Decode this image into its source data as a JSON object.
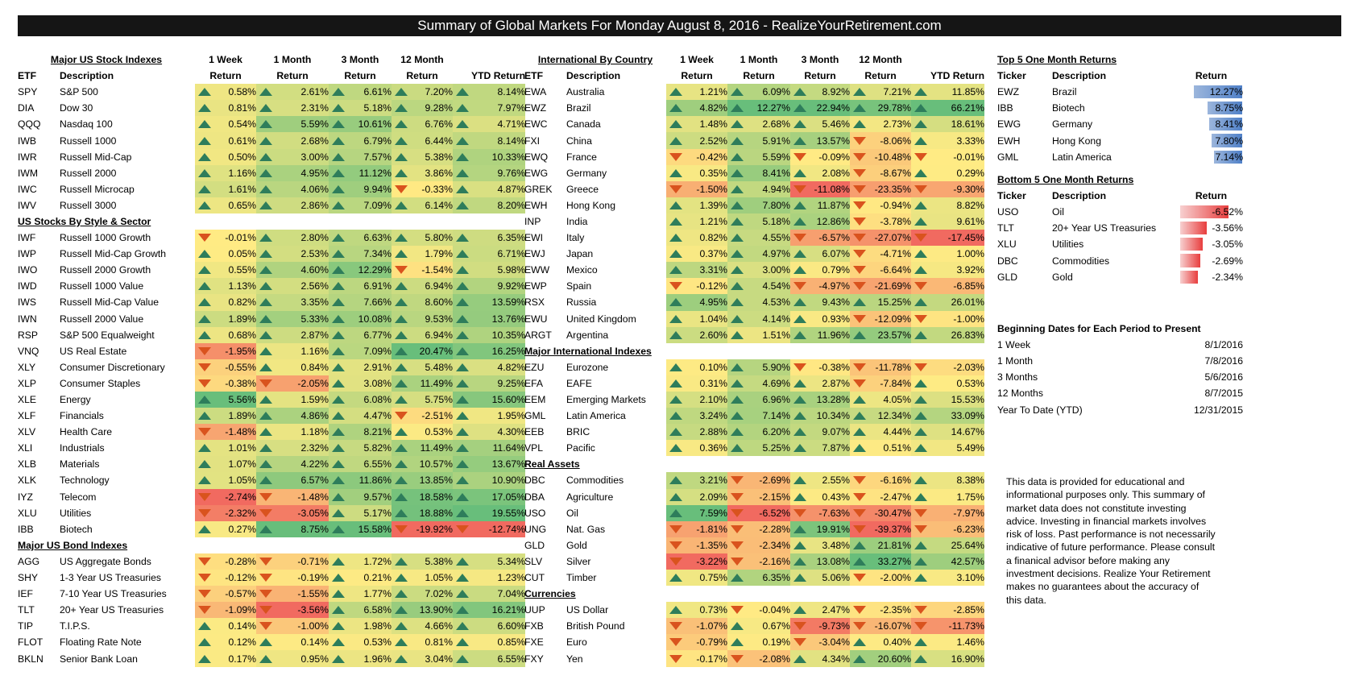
{
  "title": "Summary of Global Markets For Monday August 8, 2016 - RealizeYourRetirement.com",
  "colors": {
    "banner_bg": "#151515",
    "up_arrow": "#2e7d5b",
    "down_arrow": "#d9531e"
  },
  "column_headers": {
    "etf": "ETF",
    "description": "Description",
    "w1": [
      "1 Week",
      "Return"
    ],
    "m1": [
      "1 Month",
      "Return"
    ],
    "m3": [
      "3 Month",
      "Return"
    ],
    "m12": [
      "12 Month",
      "Return"
    ],
    "ytd": [
      "",
      "YTD Return"
    ]
  },
  "left": {
    "groups": [
      {
        "title": "Major US Stock Indexes",
        "rows": [
          [
            "SPY",
            "S&P 500",
            "0.58%",
            "2.61%",
            "6.61%",
            "7.20%",
            "8.14%"
          ],
          [
            "DIA",
            "Dow 30",
            "0.81%",
            "2.31%",
            "5.18%",
            "9.28%",
            "7.97%"
          ],
          [
            "QQQ",
            "Nasdaq 100",
            "0.54%",
            "5.59%",
            "10.61%",
            "6.76%",
            "4.71%"
          ],
          [
            "IWB",
            "Russell 1000",
            "0.61%",
            "2.68%",
            "6.79%",
            "6.44%",
            "8.14%"
          ],
          [
            "IWR",
            "Russell Mid-Cap",
            "0.50%",
            "3.00%",
            "7.57%",
            "5.38%",
            "10.33%"
          ],
          [
            "IWM",
            "Russell 2000",
            "1.16%",
            "4.95%",
            "11.12%",
            "3.86%",
            "9.76%"
          ],
          [
            "IWC",
            "Russell Microcap",
            "1.61%",
            "4.06%",
            "9.94%",
            "-0.33%",
            "4.87%"
          ],
          [
            "IWV",
            "Russell 3000",
            "0.65%",
            "2.86%",
            "7.09%",
            "6.14%",
            "8.20%"
          ]
        ]
      },
      {
        "title": "US Stocks By Style & Sector",
        "rows": [
          [
            "IWF",
            "Russell 1000 Growth",
            "-0.01%",
            "2.80%",
            "6.63%",
            "5.80%",
            "6.35%"
          ],
          [
            "IWP",
            "Russell Mid-Cap Growth",
            "0.05%",
            "2.53%",
            "7.34%",
            "1.79%",
            "6.71%"
          ],
          [
            "IWO",
            "Russell 2000 Growth",
            "0.55%",
            "4.60%",
            "12.29%",
            "-1.54%",
            "5.98%"
          ],
          [
            "IWD",
            "Russell 1000 Value",
            "1.13%",
            "2.56%",
            "6.91%",
            "6.94%",
            "9.92%"
          ],
          [
            "IWS",
            "Russell Mid-Cap Value",
            "0.82%",
            "3.35%",
            "7.66%",
            "8.60%",
            "13.59%"
          ],
          [
            "IWN",
            "Russell 2000 Value",
            "1.89%",
            "5.33%",
            "10.08%",
            "9.53%",
            "13.76%"
          ],
          [
            "RSP",
            "S&P 500 Equalweight",
            "0.68%",
            "2.87%",
            "6.77%",
            "6.94%",
            "10.35%"
          ],
          [
            "VNQ",
            "US Real Estate",
            "-1.95%",
            "1.16%",
            "7.09%",
            "20.47%",
            "16.25%"
          ],
          [
            "XLY",
            "Consumer Discretionary",
            "-0.55%",
            "0.84%",
            "2.91%",
            "5.48%",
            "4.82%"
          ],
          [
            "XLP",
            "Consumer Staples",
            "-0.38%",
            "-2.05%",
            "3.08%",
            "11.49%",
            "9.25%"
          ],
          [
            "XLE",
            "Energy",
            "5.56%",
            "1.59%",
            "6.08%",
            "5.75%",
            "15.60%"
          ],
          [
            "XLF",
            "Financials",
            "1.89%",
            "4.86%",
            "4.47%",
            "-2.51%",
            "1.95%"
          ],
          [
            "XLV",
            "Health Care",
            "-1.48%",
            "1.18%",
            "8.21%",
            "0.53%",
            "4.30%"
          ],
          [
            "XLI",
            "Industrials",
            "1.01%",
            "2.32%",
            "5.82%",
            "11.49%",
            "11.64%"
          ],
          [
            "XLB",
            "Materials",
            "1.07%",
            "4.22%",
            "6.55%",
            "10.57%",
            "13.67%"
          ],
          [
            "XLK",
            "Technology",
            "1.05%",
            "6.57%",
            "11.86%",
            "13.85%",
            "10.90%"
          ],
          [
            "IYZ",
            "Telecom",
            "-2.74%",
            "-1.48%",
            "9.57%",
            "18.58%",
            "17.05%"
          ],
          [
            "XLU",
            "Utilities",
            "-2.32%",
            "-3.05%",
            "5.17%",
            "18.88%",
            "19.55%"
          ],
          [
            "IBB",
            "Biotech",
            "0.27%",
            "8.75%",
            "15.58%",
            "-19.92%",
            "-12.74%"
          ]
        ]
      },
      {
        "title": "Major US Bond Indexes",
        "rows": [
          [
            "AGG",
            "US Aggregate Bonds",
            "-0.28%",
            "-0.71%",
            "1.72%",
            "5.38%",
            "5.34%"
          ],
          [
            "SHY",
            "1-3 Year US Treasuries",
            "-0.12%",
            "-0.19%",
            "0.21%",
            "1.05%",
            "1.23%"
          ],
          [
            "IEF",
            "7-10 Year US Treasuries",
            "-0.57%",
            "-1.55%",
            "1.77%",
            "7.02%",
            "7.04%"
          ],
          [
            "TLT",
            "20+ Year US Treasuries",
            "-1.09%",
            "-3.56%",
            "6.58%",
            "13.90%",
            "16.21%"
          ],
          [
            "TIP",
            "T.I.P.S.",
            "0.14%",
            "-1.00%",
            "1.98%",
            "4.66%",
            "6.60%"
          ],
          [
            "FLOT",
            "Floating Rate Note",
            "0.12%",
            "0.14%",
            "0.53%",
            "0.81%",
            "0.85%"
          ],
          [
            "BKLN",
            "Senior Bank Loan",
            "0.17%",
            "0.95%",
            "1.96%",
            "3.04%",
            "6.55%"
          ]
        ]
      }
    ]
  },
  "middle": {
    "groups": [
      {
        "title": "International By Country",
        "rows": [
          [
            "EWA",
            "Australia",
            "1.21%",
            "6.09%",
            "8.92%",
            "7.21%",
            "11.85%"
          ],
          [
            "EWZ",
            "Brazil",
            "4.82%",
            "12.27%",
            "22.94%",
            "29.78%",
            "66.21%"
          ],
          [
            "EWC",
            "Canada",
            "1.48%",
            "2.68%",
            "5.46%",
            "2.73%",
            "18.61%"
          ],
          [
            "FXI",
            "China",
            "2.52%",
            "5.91%",
            "13.57%",
            "-8.06%",
            "3.33%"
          ],
          [
            "EWQ",
            "France",
            "-0.42%",
            "5.59%",
            "-0.09%",
            "-10.48%",
            "-0.01%"
          ],
          [
            "EWG",
            "Germany",
            "0.35%",
            "8.41%",
            "2.08%",
            "-8.67%",
            "0.29%"
          ],
          [
            "GREK",
            "Greece",
            "-1.50%",
            "4.94%",
            "-11.08%",
            "-23.35%",
            "-9.30%"
          ],
          [
            "EWH",
            "Hong Kong",
            "1.39%",
            "7.80%",
            "11.87%",
            "-0.94%",
            "8.82%"
          ],
          [
            "INP",
            "India",
            "1.21%",
            "5.18%",
            "12.86%",
            "-3.78%",
            "9.61%"
          ],
          [
            "EWI",
            "Italy",
            "0.82%",
            "4.55%",
            "-6.57%",
            "-27.07%",
            "-17.45%"
          ],
          [
            "EWJ",
            "Japan",
            "0.37%",
            "4.97%",
            "6.07%",
            "-4.71%",
            "1.00%"
          ],
          [
            "EWW",
            "Mexico",
            "3.31%",
            "3.00%",
            "0.79%",
            "-6.64%",
            "3.92%"
          ],
          [
            "EWP",
            "Spain",
            "-0.12%",
            "4.54%",
            "-4.97%",
            "-21.69%",
            "-6.85%"
          ],
          [
            "RSX",
            "Russia",
            "4.95%",
            "4.53%",
            "9.43%",
            "15.25%",
            "26.01%"
          ],
          [
            "EWU",
            "United Kingdom",
            "1.04%",
            "4.14%",
            "0.93%",
            "-12.09%",
            "-1.00%"
          ],
          [
            "ARGT",
            "Argentina",
            "2.60%",
            "1.51%",
            "11.96%",
            "23.57%",
            "26.83%"
          ]
        ]
      },
      {
        "title": "Major International Indexes",
        "rows": [
          [
            "EZU",
            "Eurozone",
            "0.10%",
            "5.90%",
            "-0.38%",
            "-11.78%",
            "-2.03%"
          ],
          [
            "EFA",
            "EAFE",
            "0.31%",
            "4.69%",
            "2.87%",
            "-7.84%",
            "0.53%"
          ],
          [
            "EEM",
            "Emerging Markets",
            "2.10%",
            "6.96%",
            "13.28%",
            "4.05%",
            "15.53%"
          ],
          [
            "GML",
            "Latin America",
            "3.24%",
            "7.14%",
            "10.34%",
            "12.34%",
            "33.09%"
          ],
          [
            "EEB",
            "BRIC",
            "2.88%",
            "6.20%",
            "9.07%",
            "4.44%",
            "14.67%"
          ],
          [
            "VPL",
            "Pacific",
            "0.36%",
            "5.25%",
            "7.87%",
            "0.51%",
            "5.49%"
          ]
        ]
      },
      {
        "title": "Real Assets",
        "rows": [
          [
            "DBC",
            "Commodities",
            "3.21%",
            "-2.69%",
            "2.55%",
            "-6.16%",
            "8.38%"
          ],
          [
            "DBA",
            "Agriculture",
            "2.09%",
            "-2.15%",
            "0.43%",
            "-2.47%",
            "1.75%"
          ],
          [
            "USO",
            "Oil",
            "7.59%",
            "-6.52%",
            "-7.63%",
            "-30.47%",
            "-7.97%"
          ],
          [
            "UNG",
            "Nat. Gas",
            "-1.81%",
            "-2.28%",
            "19.91%",
            "-39.37%",
            "-6.23%"
          ],
          [
            "GLD",
            "Gold",
            "-1.35%",
            "-2.34%",
            "3.48%",
            "21.81%",
            "25.64%"
          ],
          [
            "SLV",
            "Silver",
            "-3.22%",
            "-2.16%",
            "13.08%",
            "33.27%",
            "42.57%"
          ],
          [
            "CUT",
            "Timber",
            "0.75%",
            "6.35%",
            "5.06%",
            "-2.00%",
            "3.10%"
          ]
        ]
      },
      {
        "title": "Currencies",
        "rows": [
          [
            "UUP",
            "US Dollar",
            "0.73%",
            "-0.04%",
            "2.47%",
            "-2.35%",
            "-2.85%"
          ],
          [
            "FXB",
            "British Pound",
            "-1.07%",
            "0.67%",
            "-9.73%",
            "-16.07%",
            "-11.73%"
          ],
          [
            "FXE",
            "Euro",
            "-0.79%",
            "0.19%",
            "-3.04%",
            "0.40%",
            "1.46%"
          ],
          [
            "FXY",
            "Yen",
            "-0.17%",
            "-2.08%",
            "4.34%",
            "20.60%",
            "16.90%"
          ]
        ]
      }
    ]
  },
  "top5": {
    "title": "Top 5 One Month Returns",
    "headers": [
      "Ticker",
      "Description",
      "Return"
    ],
    "rows": [
      [
        "EWZ",
        "Brazil",
        "12.27%",
        12.27
      ],
      [
        "IBB",
        "Biotech",
        "8.75%",
        8.75
      ],
      [
        "EWG",
        "Germany",
        "8.41%",
        8.41
      ],
      [
        "EWH",
        "Hong Kong",
        "7.80%",
        7.8
      ],
      [
        "GML",
        "Latin America",
        "7.14%",
        7.14
      ]
    ]
  },
  "bottom5": {
    "title": "Bottom 5 One Month Returns",
    "headers": [
      "Ticker",
      "Description",
      "Return"
    ],
    "rows": [
      [
        "USO",
        "Oil",
        "-6.52%",
        -6.52
      ],
      [
        "TLT",
        "20+ Year US Treasuries",
        "-3.56%",
        -3.56
      ],
      [
        "XLU",
        "Utilities",
        "-3.05%",
        -3.05
      ],
      [
        "DBC",
        "Commodities",
        "-2.69%",
        -2.69
      ],
      [
        "GLD",
        "Gold",
        "-2.34%",
        -2.34
      ]
    ]
  },
  "dates": {
    "title": "Beginning Dates for Each Period to Present",
    "rows": [
      [
        "1 Week",
        "8/1/2016"
      ],
      [
        "1 Month",
        "7/8/2016"
      ],
      [
        "3 Months",
        "5/6/2016"
      ],
      [
        "12 Months",
        "8/7/2015"
      ],
      [
        "Year To Date (YTD)",
        "12/31/2015"
      ]
    ]
  },
  "disclaimer": "This data is provided for educational and informational purposes only. This summary of market data does not constitute investing advice. Investing in financial markets involves risk of loss.  Past performance is not necessarily  indicative of future performance. Please consult a finanical advisor before making any investment decisions. Realize Your Retirement makes no guarantees about the accuracy of this data."
}
